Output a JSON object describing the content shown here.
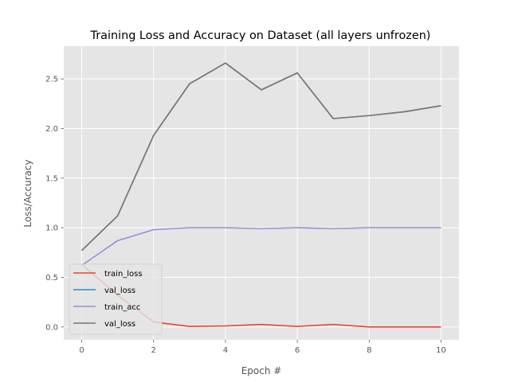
{
  "chart_data": {
    "type": "line",
    "title": "Training Loss and Accuracy on Dataset (all layers unfrozen)",
    "xlabel": "Epoch #",
    "ylabel": "Loss/Accuracy",
    "xlim": [
      -0.5,
      10.5
    ],
    "ylim": [
      -0.13,
      2.83
    ],
    "x": [
      0,
      1,
      2,
      3,
      4,
      5,
      6,
      7,
      8,
      9,
      10
    ],
    "xticks": [
      0,
      2,
      4,
      6,
      8,
      10
    ],
    "xtick_labels": [
      "0",
      "2",
      "4",
      "6",
      "8",
      "10"
    ],
    "yticks": [
      0.0,
      0.5,
      1.0,
      1.5,
      2.0,
      2.5
    ],
    "ytick_labels": [
      "0.0",
      "0.5",
      "1.0",
      "1.5",
      "2.0",
      "2.5"
    ],
    "grid": true,
    "legend_position": "lower-left",
    "series": [
      {
        "name": "train_loss",
        "color": "#E24A33",
        "values": [
          0.63,
          0.32,
          0.05,
          0.005,
          0.01,
          0.025,
          0.005,
          0.025,
          0.0,
          0.0,
          0.0
        ]
      },
      {
        "name": "val_loss",
        "color": "#348ABD",
        "values": [
          0.77,
          1.12,
          1.93,
          2.45,
          2.66,
          2.39,
          2.56,
          2.1,
          2.13,
          2.17,
          2.23
        ]
      },
      {
        "name": "train_acc",
        "color": "#988ED5",
        "values": [
          0.62,
          0.87,
          0.98,
          1.0,
          1.0,
          0.99,
          1.0,
          0.99,
          1.0,
          1.0,
          1.0
        ]
      },
      {
        "name": "val_loss",
        "color": "#777777",
        "values": [
          0.77,
          1.12,
          1.93,
          2.45,
          2.66,
          2.39,
          2.56,
          2.1,
          2.13,
          2.17,
          2.23
        ]
      }
    ]
  }
}
